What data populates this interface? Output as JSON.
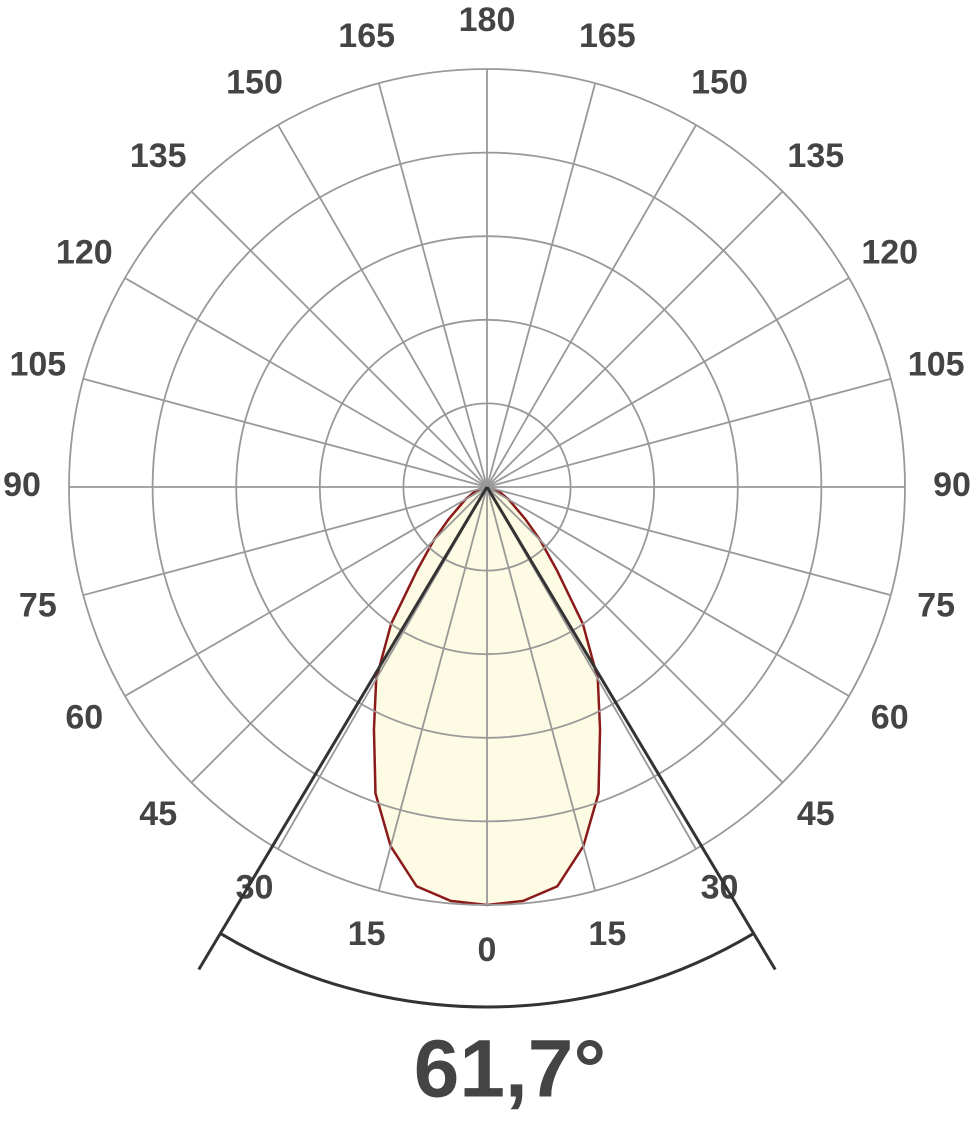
{
  "chart_data": {
    "type": "polar",
    "theta_ticks": [
      0,
      15,
      30,
      45,
      60,
      75,
      90,
      105,
      120,
      135,
      150,
      165,
      180
    ],
    "rlim": [
      0,
      5
    ],
    "rgrid": [
      1,
      2,
      3,
      4,
      5
    ],
    "series": [
      {
        "color": "#8b1a1a",
        "fill": "#fdfbe3",
        "angles": [
          0,
          5,
          10,
          15,
          20,
          25,
          30,
          35,
          40,
          45,
          50,
          60,
          70,
          80,
          90
        ],
        "values": [
          5.0,
          4.97,
          4.85,
          4.45,
          3.9,
          3.2,
          2.65,
          2.0,
          1.3,
          0.9,
          0.6,
          0.3,
          0.15,
          0.05,
          0
        ]
      }
    ],
    "beam_angle": {
      "value": 61.7,
      "label": "61,7°"
    }
  }
}
